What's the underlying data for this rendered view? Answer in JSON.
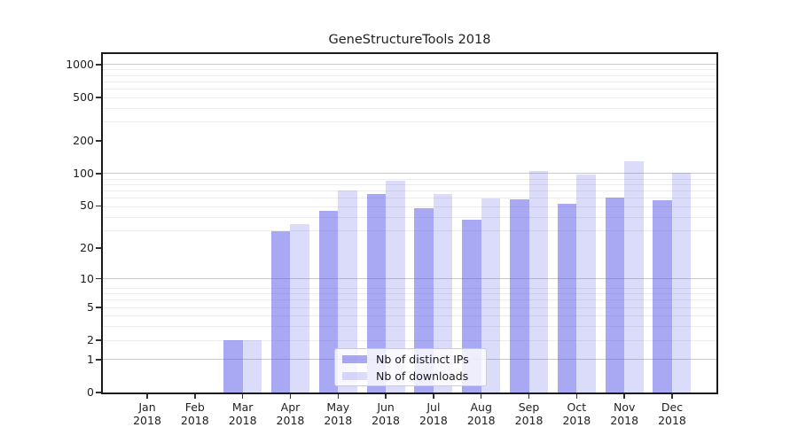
{
  "title": "GeneStructureTools 2018",
  "chart_data": {
    "type": "bar",
    "title": "GeneStructureTools 2018",
    "categories": [
      "Jan 2018",
      "Feb 2018",
      "Mar 2018",
      "Apr 2018",
      "May 2018",
      "Jun 2018",
      "Jul 2018",
      "Aug 2018",
      "Sep 2018",
      "Oct 2018",
      "Nov 2018",
      "Dec 2018"
    ],
    "series": [
      {
        "name": "Nb of distinct IPs",
        "color": "#a9a9f3",
        "color_rgba": "rgba(90,90,232,0.52)",
        "values": [
          0,
          0,
          2,
          29,
          45,
          65,
          48,
          37,
          58,
          52,
          60,
          57
        ]
      },
      {
        "name": "Nb of downloads",
        "color": "#dbdbfa",
        "color_rgba": "rgba(90,90,232,0.22)",
        "values": [
          0,
          0,
          2,
          34,
          70,
          86,
          64,
          59,
          105,
          97,
          130,
          101
        ]
      }
    ],
    "xlabel": "",
    "ylabel": "",
    "y_ticks": [
      0,
      1,
      2,
      5,
      10,
      20,
      50,
      100,
      200,
      500,
      1000
    ],
    "y_scale": "log10(value+1)",
    "ylim": [
      0,
      1280
    ],
    "grid": true,
    "legend_position": "lower center"
  },
  "colors": {
    "axis": "#1a1a1a",
    "grid_major": "#c9c9c9",
    "grid_minor": "#ececec",
    "background": "#ffffff"
  }
}
